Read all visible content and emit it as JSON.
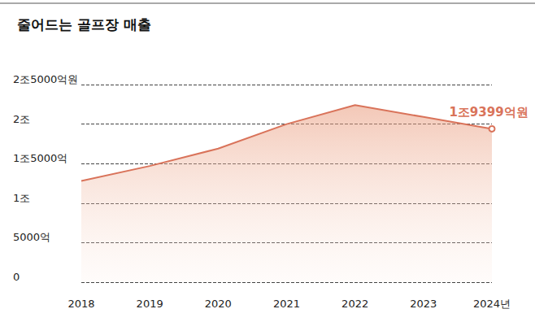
{
  "chart_data": {
    "type": "area",
    "title": "줄어드는 골프장 매출",
    "categories": [
      "2018",
      "2019",
      "2020",
      "2021",
      "2022",
      "2023",
      "2024년"
    ],
    "values": [
      12800,
      14700,
      16900,
      20000,
      22400,
      20900,
      19399
    ],
    "color": "#d9735a",
    "ylim": [
      0,
      25000
    ],
    "yticks": [
      0,
      {
        "value": 5000,
        "label": "5000억"
      },
      {
        "value": 10000,
        "label": "1조"
      },
      {
        "value": 15000,
        "label": "1조5000억"
      },
      {
        "value": 20000,
        "label": "2조"
      },
      {
        "value": 25000,
        "label": "2조5000억원"
      }
    ],
    "grid": true,
    "annotations": [
      {
        "x": "2024년",
        "y": 19399,
        "label": "1조9399억원"
      }
    ]
  }
}
